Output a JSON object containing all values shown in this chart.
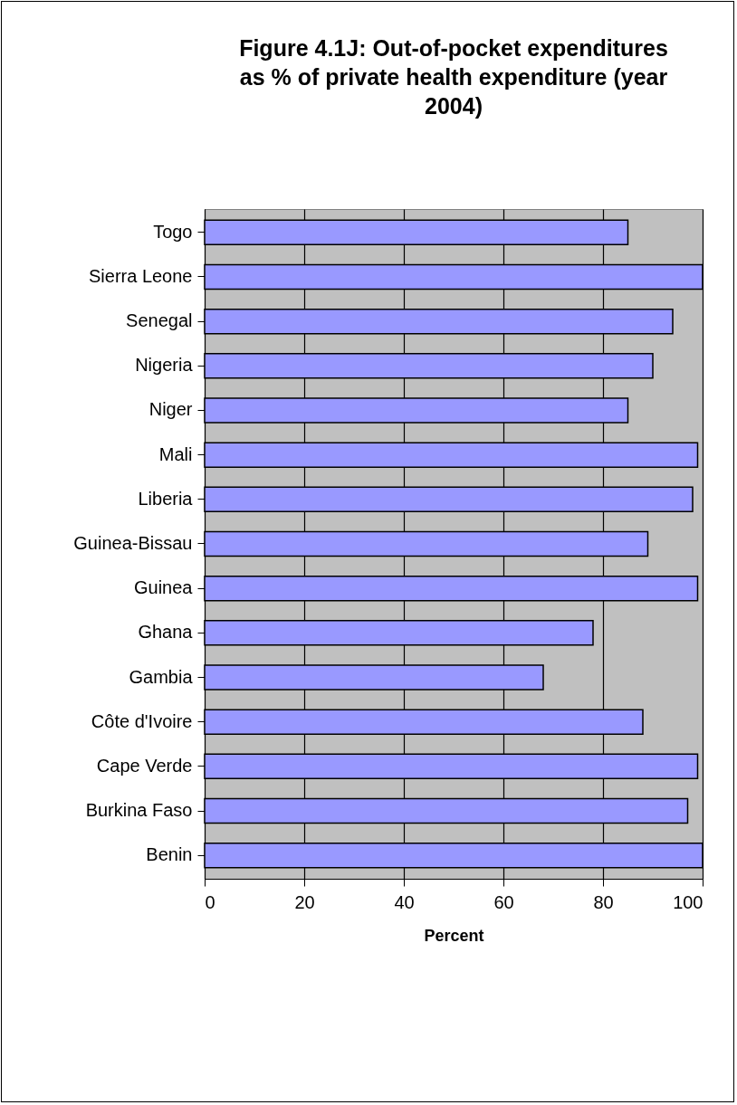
{
  "chart_data": {
    "type": "bar",
    "orientation": "horizontal",
    "title": "Figure 4.1J: Out-of-pocket expenditures as % of private health expenditure (year 2004)",
    "xlabel": "Percent",
    "categories": [
      "Togo",
      "Sierra Leone",
      "Senegal",
      "Nigeria",
      "Niger",
      "Mali",
      "Liberia",
      "Guinea-Bissau",
      "Guinea",
      "Ghana",
      "Gambia",
      "Côte d'Ivoire",
      "Cape Verde",
      "Burkina Faso",
      "Benin"
    ],
    "values": [
      85,
      100,
      94,
      90,
      85,
      99,
      98,
      89,
      99,
      78,
      68,
      88,
      99,
      97,
      100
    ],
    "color": "#9999ff",
    "xlim": [
      0,
      100
    ],
    "xticks": [
      0,
      20,
      40,
      60,
      80,
      100
    ],
    "grid": "x"
  }
}
